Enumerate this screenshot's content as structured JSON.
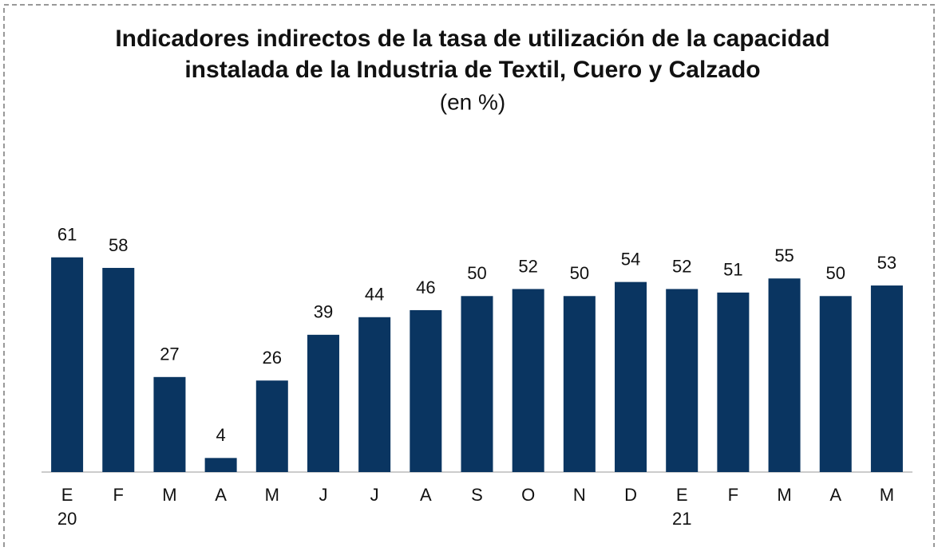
{
  "chart_data": {
    "type": "bar",
    "title": [
      "Indicadores indirectos de la tasa de utilización de la capacidad",
      "instalada de la Industria de Textil, Cuero y Calzado"
    ],
    "subtitle": "(en %)",
    "categories": [
      "E",
      "F",
      "M",
      "A",
      "M",
      "J",
      "J",
      "A",
      "S",
      "O",
      "N",
      "D",
      "E",
      "F",
      "M",
      "A",
      "M"
    ],
    "years": [
      "20",
      null,
      null,
      null,
      null,
      null,
      null,
      null,
      null,
      null,
      null,
      null,
      "21",
      null,
      null,
      null,
      null
    ],
    "values": [
      61,
      58,
      27,
      4,
      26,
      39,
      44,
      46,
      50,
      52,
      50,
      54,
      52,
      51,
      55,
      50,
      53
    ],
    "color": "#0a3561",
    "ylim": [
      0,
      70
    ]
  }
}
